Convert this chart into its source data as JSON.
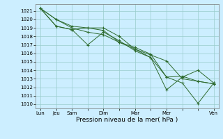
{
  "xlabel": "Pression niveau de la mer( hPa )",
  "bg_color": "#cceeff",
  "grid_color": "#99cccc",
  "line_color": "#2d6a2d",
  "marker_color": "#2d6a2d",
  "ylim": [
    1009.5,
    1021.8
  ],
  "yticks": [
    1010,
    1011,
    1012,
    1013,
    1014,
    1015,
    1016,
    1017,
    1018,
    1019,
    1020,
    1021
  ],
  "xtick_labels": [
    "Lun",
    "Jeu",
    "Sam",
    "",
    "Dim",
    "",
    "Mar",
    "",
    "Mer",
    "",
    "",
    "Ven"
  ],
  "xtick_positions": [
    0,
    1,
    2,
    3,
    4,
    5,
    6,
    7,
    8,
    9,
    10,
    11
  ],
  "series": [
    [
      1021.3,
      1020.0,
      1019.0,
      1018.5,
      1018.2,
      1017.3,
      1016.5,
      1015.8,
      1015.1,
      1013.0,
      1012.7,
      1012.4
    ],
    [
      1021.3,
      1019.2,
      1018.8,
      1017.0,
      1018.5,
      1017.5,
      1016.3,
      1015.5,
      1011.7,
      1013.2,
      1014.0,
      1012.5
    ],
    [
      1021.3,
      1019.2,
      1018.8,
      1019.0,
      1018.7,
      1017.3,
      1016.7,
      1015.9,
      1013.2,
      1012.5,
      1010.1,
      1012.5
    ],
    [
      1021.3,
      1020.0,
      1019.2,
      1019.0,
      1019.0,
      1018.0,
      1016.5,
      1015.5,
      1013.2,
      1013.3,
      1012.7,
      1012.4
    ]
  ],
  "x_positions": [
    0,
    1,
    2,
    3,
    4,
    5,
    6,
    7,
    8,
    9,
    10,
    11
  ],
  "xlabel_fontsize": 6.5,
  "ytick_fontsize": 5.0,
  "xtick_fontsize": 5.0
}
